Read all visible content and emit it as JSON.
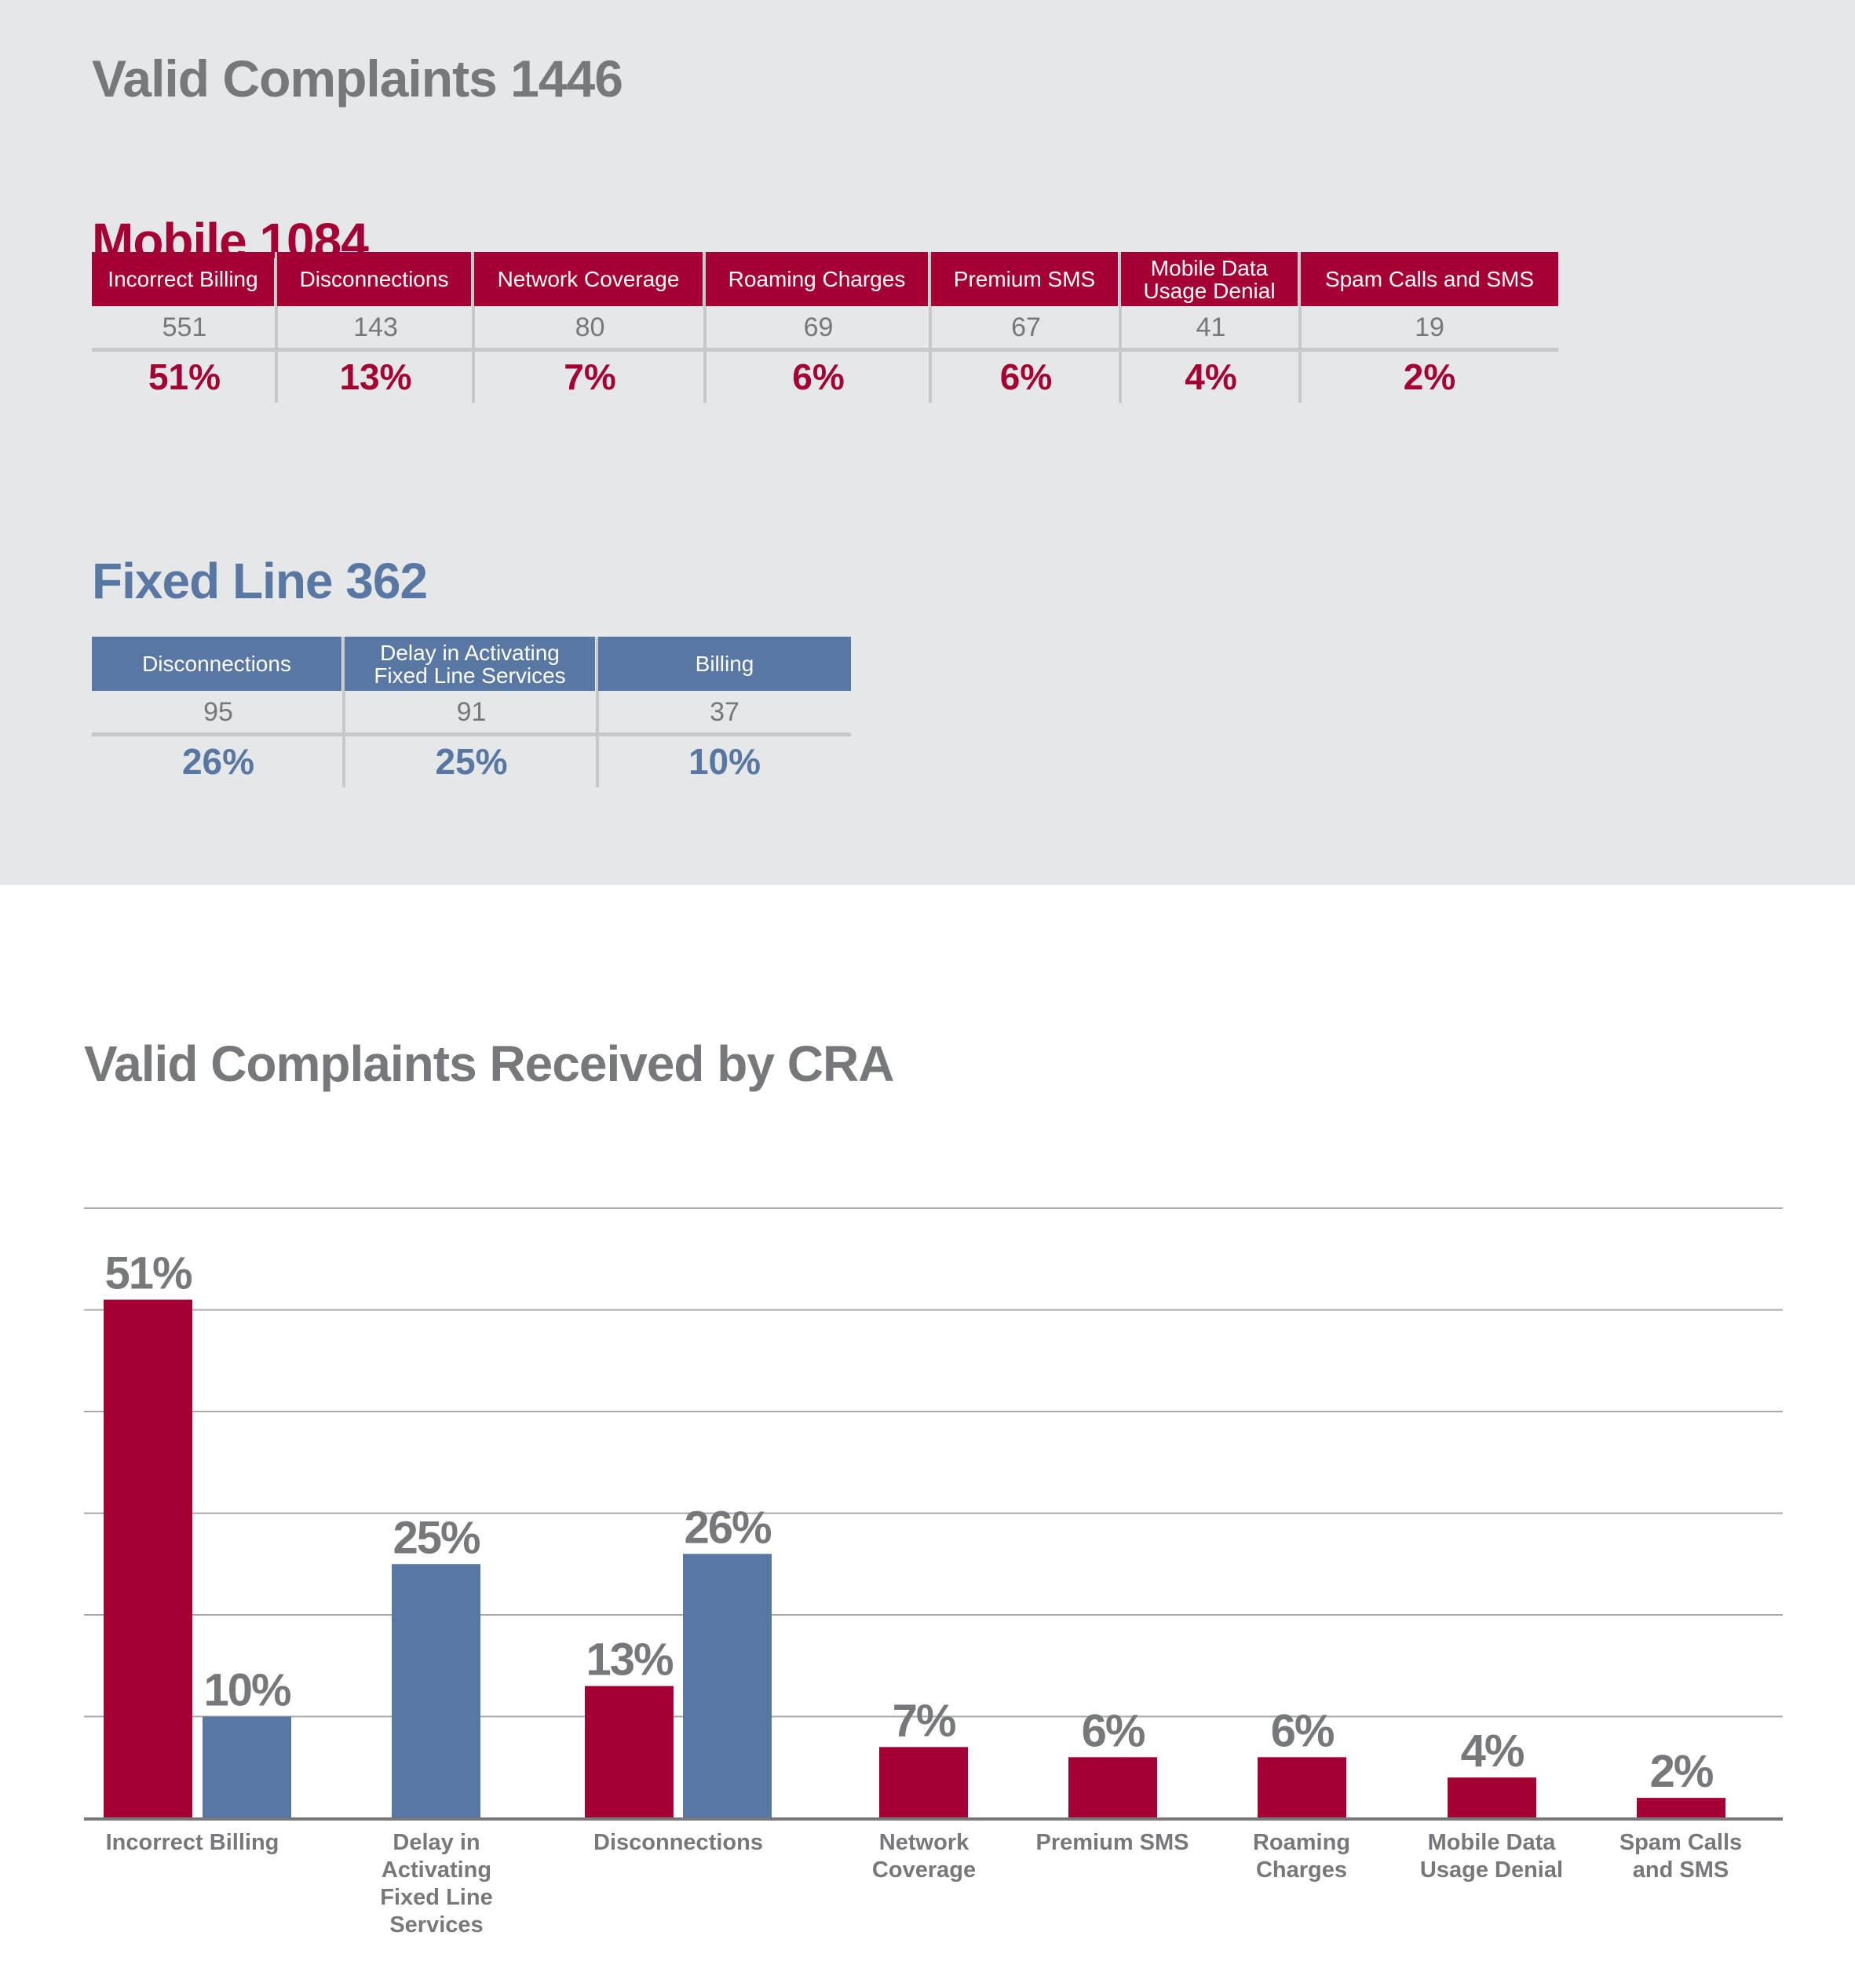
{
  "summary": {
    "title": "Valid Complaints 1446"
  },
  "mobile": {
    "title": "Mobile 1084",
    "color": "#a50034",
    "columns": [
      {
        "label": "Incorrect Billing",
        "count": "551",
        "percent": "51%"
      },
      {
        "label": "Disconnections",
        "count": "143",
        "percent": "13%"
      },
      {
        "label": "Network Coverage",
        "count": "80",
        "percent": "7%"
      },
      {
        "label": "Roaming Charges",
        "count": "69",
        "percent": "6%"
      },
      {
        "label": "Premium SMS",
        "count": "67",
        "percent": "6%"
      },
      {
        "label": "Mobile Data Usage Denial",
        "count": "41",
        "percent": "4%"
      },
      {
        "label": "Spam Calls and SMS",
        "count": "19",
        "percent": "2%"
      }
    ]
  },
  "fixed_line": {
    "title": "Fixed Line 362",
    "color": "#5878a3",
    "columns": [
      {
        "label": "Disconnections",
        "count": "95",
        "percent": "26%"
      },
      {
        "label": "Delay in Activating Fixed Line Services",
        "count": "91",
        "percent": "25%"
      },
      {
        "label": "Billing",
        "count": "37",
        "percent": "10%"
      }
    ]
  },
  "chart_data": {
    "type": "bar",
    "title": "Valid Complaints Received by CRA",
    "xlabel": "",
    "ylabel": "",
    "ylim": [
      0,
      60
    ],
    "grid": true,
    "gridlines": [
      10,
      20,
      30,
      40,
      50,
      60
    ],
    "legend": "none",
    "categories": [
      "Incorrect Billing",
      "Delay in Activating Fixed Line Services",
      "Disconnections",
      "Network Coverage",
      "Premium SMS",
      "Roaming Charges",
      "Mobile Data Usage Denial",
      "Spam Calls and SMS"
    ],
    "series": [
      {
        "name": "Mobile",
        "color": "#a50034",
        "values": [
          51,
          null,
          13,
          7,
          6,
          6,
          4,
          2
        ]
      },
      {
        "name": "Fixed Line",
        "color": "#5878a3",
        "values": [
          10,
          25,
          26,
          null,
          null,
          null,
          null,
          null
        ]
      }
    ],
    "data_label_suffix": "%",
    "label_color": "#77787b"
  }
}
